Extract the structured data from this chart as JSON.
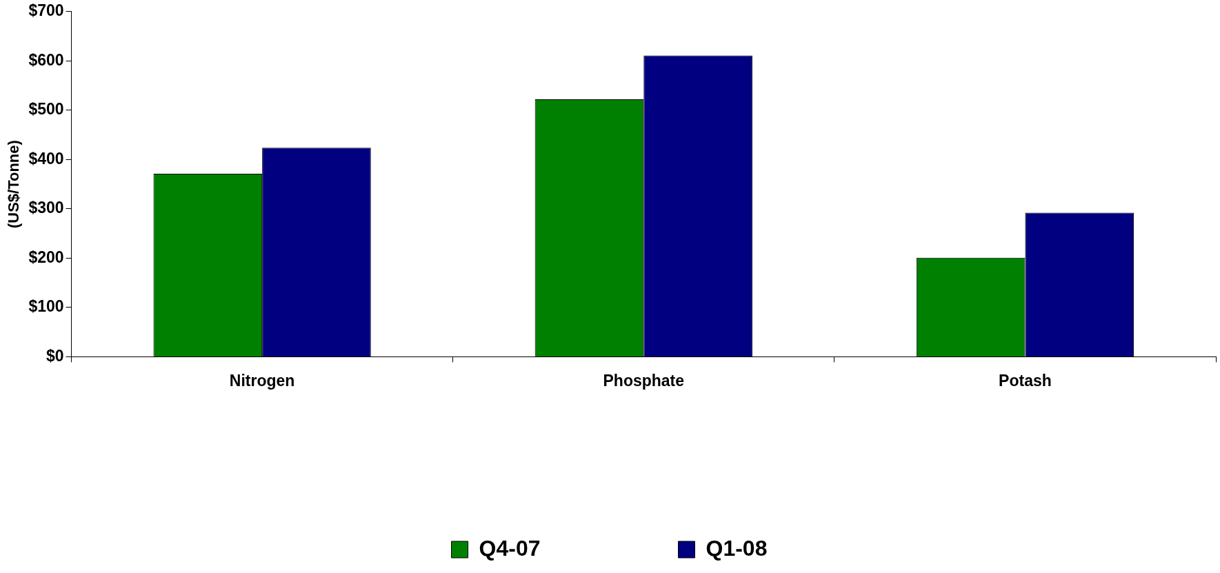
{
  "chart_data": {
    "type": "bar",
    "ylabel": "(US$/Tonne)",
    "categories": [
      "Nitrogen",
      "Phosphate",
      "Potash"
    ],
    "series": [
      {
        "name": "Q4-07",
        "color": "#008000",
        "values": [
          371,
          522,
          201
        ]
      },
      {
        "name": "Q1-08",
        "color": "#000080",
        "values": [
          424,
          611,
          292
        ]
      }
    ],
    "ylim": [
      0,
      700
    ],
    "yticks": [
      {
        "value": 0,
        "label": "$0"
      },
      {
        "value": 100,
        "label": "$100"
      },
      {
        "value": 200,
        "label": "$200"
      },
      {
        "value": 300,
        "label": "$300"
      },
      {
        "value": 400,
        "label": "$400"
      },
      {
        "value": 500,
        "label": "$500"
      },
      {
        "value": 600,
        "label": "$600"
      },
      {
        "value": 700,
        "label": "$700"
      }
    ],
    "grid": false,
    "legend": "bottom"
  }
}
